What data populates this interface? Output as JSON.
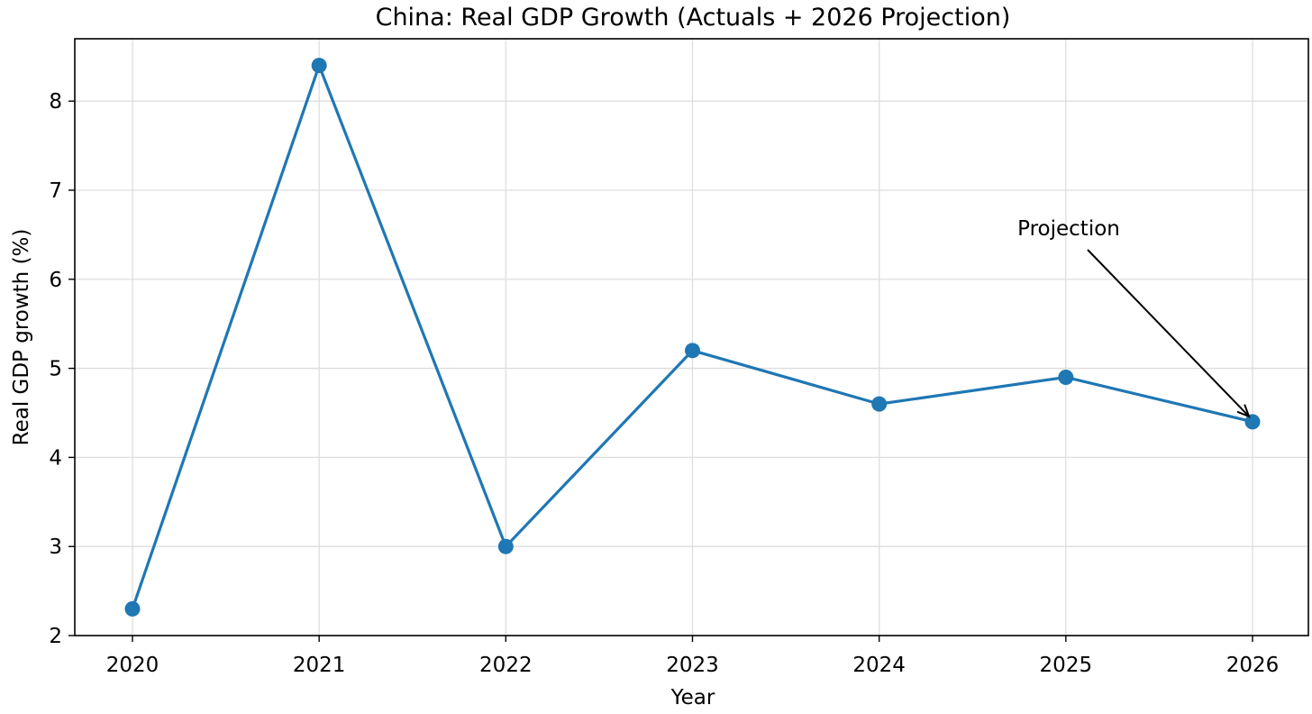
{
  "chart_data": {
    "type": "line",
    "title": "China: Real GDP Growth (Actuals + 2026 Projection)",
    "xlabel": "Year",
    "ylabel": "Real GDP growth (%)",
    "categories": [
      "2020",
      "2021",
      "2022",
      "2023",
      "2024",
      "2025",
      "2026"
    ],
    "series": [
      {
        "values": [
          2.3,
          8.4,
          3.0,
          5.2,
          4.6,
          4.9,
          4.4
        ],
        "color": "#1f77b4"
      }
    ],
    "ylim": [
      2.0,
      8.7
    ],
    "yticks": [
      "2",
      "3",
      "4",
      "5",
      "6",
      "7",
      "8"
    ],
    "grid": true,
    "annotation": {
      "text": "Projection",
      "target_category": "2026",
      "target_value": 4.4
    }
  }
}
